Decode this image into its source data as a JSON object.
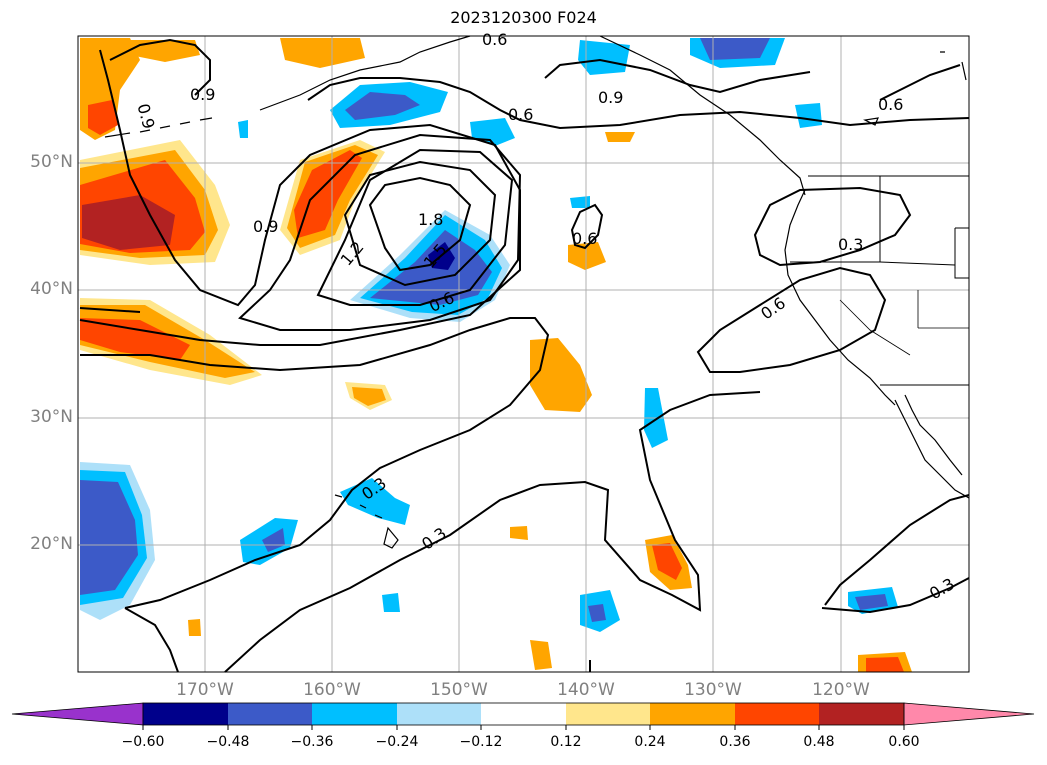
{
  "title": "2023120300 F024",
  "map": {
    "lat_labels": [
      "50°N",
      "40°N",
      "30°N",
      "20°N"
    ],
    "lon_labels": [
      "170°W",
      "160°W",
      "150°W",
      "140°W",
      "130°W",
      "120°W"
    ],
    "contour_labels": [
      "0.9",
      "0.9",
      "0.6",
      "0.9",
      "0.6",
      "0.6",
      "0.9",
      "1.2",
      "1.8",
      "1.5",
      "0.6",
      "0.6",
      "0.3",
      "0.6",
      "0.3",
      "0.3",
      "0.3"
    ]
  },
  "colorbar": {
    "ticks": [
      "−0.60",
      "−0.48",
      "−0.36",
      "−0.24",
      "−0.12",
      "0.12",
      "0.24",
      "0.36",
      "0.48",
      "0.60"
    ],
    "colors": [
      "#9932cc",
      "#00008b",
      "#3c5ac8",
      "#00bfff",
      "#ade0f9",
      "#ffffff",
      "#ffe68c",
      "#ffa500",
      "#ff4500",
      "#b22222",
      "#ff88aa"
    ]
  },
  "colors": {
    "coast": "#000000",
    "grid": "#b0b0b0",
    "axis_label": "#808080"
  }
}
